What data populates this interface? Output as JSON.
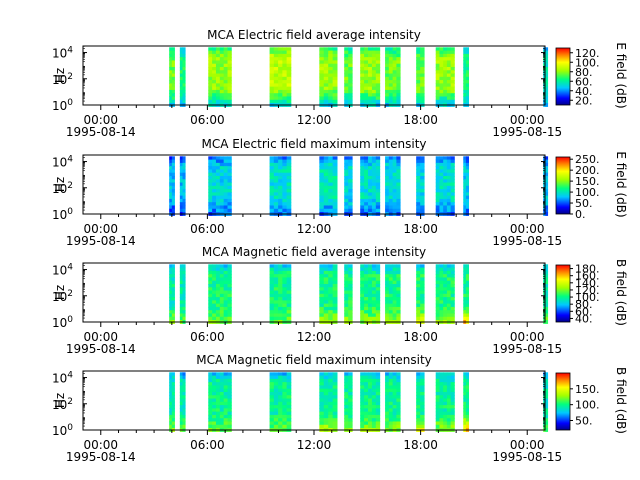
{
  "chart_data": [
    {
      "type": "heatmap",
      "title": "MCA  Electric field average intensity",
      "ylabel": "Hz",
      "ylim_log10": [
        0,
        4.5
      ],
      "y_ticks": [
        {
          "exp": "0",
          "value": 1
        },
        {
          "exp": "2",
          "value": 100
        },
        {
          "exp": "4",
          "value": 10000
        }
      ],
      "x_ticks": [
        {
          "hour": 0,
          "label": "00:00",
          "date": "1995-08-14"
        },
        {
          "hour": 6,
          "label": "06:00",
          "date": ""
        },
        {
          "hour": 12,
          "label": "12:00",
          "date": ""
        },
        {
          "hour": 18,
          "label": "18:00",
          "date": ""
        },
        {
          "hour": 24,
          "label": "00:00",
          "date": "1995-08-15"
        }
      ],
      "x_range_hours": [
        -1,
        25
      ],
      "colorbar": {
        "label": "E field (dB)",
        "min": 10,
        "max": 130,
        "ticks": [
          "20.",
          "40.",
          "60.",
          "80.",
          "100.",
          "120."
        ],
        "tick_values": [
          20,
          40,
          60,
          80,
          100,
          120
        ]
      },
      "base_level": 0.42,
      "segments": [
        {
          "start": 3.85,
          "end": 4.15,
          "level": 0.55,
          "low": 0.3
        },
        {
          "start": 4.45,
          "end": 4.75,
          "level": 0.45,
          "low": 0.3
        },
        {
          "start": 6.05,
          "end": 7.35,
          "level": 0.6,
          "low": 0.3
        },
        {
          "start": 9.5,
          "end": 10.7,
          "level": 0.65,
          "low": 0.3
        },
        {
          "start": 12.3,
          "end": 13.3,
          "level": 0.6,
          "low": 0.3
        },
        {
          "start": 13.7,
          "end": 14.15,
          "level": 0.55,
          "low": 0.3
        },
        {
          "start": 14.6,
          "end": 15.7,
          "level": 0.6,
          "low": 0.3
        },
        {
          "start": 16.0,
          "end": 16.85,
          "level": 0.55,
          "low": 0.3
        },
        {
          "start": 17.75,
          "end": 18.2,
          "level": 0.55,
          "low": 0.3
        },
        {
          "start": 18.85,
          "end": 19.9,
          "level": 0.6,
          "low": 0.3
        },
        {
          "start": 20.4,
          "end": 20.7,
          "level": 0.45,
          "low": 0.3
        },
        {
          "start": 24.9,
          "end": 25.15,
          "level": 0.4,
          "low": 0.3
        }
      ]
    },
    {
      "type": "heatmap",
      "title": "MCA  Electric field maximum intensity",
      "ylabel": "Hz",
      "ylim_log10": [
        0,
        4.5
      ],
      "y_ticks": [
        {
          "exp": "0",
          "value": 1
        },
        {
          "exp": "2",
          "value": 100
        },
        {
          "exp": "4",
          "value": 10000
        }
      ],
      "x_ticks": [
        {
          "hour": 0,
          "label": "00:00",
          "date": "1995-08-14"
        },
        {
          "hour": 6,
          "label": "06:00",
          "date": ""
        },
        {
          "hour": 12,
          "label": "12:00",
          "date": ""
        },
        {
          "hour": 18,
          "label": "18:00",
          "date": ""
        },
        {
          "hour": 24,
          "label": "00:00",
          "date": "1995-08-15"
        }
      ],
      "x_range_hours": [
        -1,
        25
      ],
      "colorbar": {
        "label": "E field (dB)",
        "min": 0,
        "max": 260,
        "ticks": [
          "0.",
          "50.",
          "100.",
          "150.",
          "200.",
          "250."
        ],
        "tick_values": [
          0,
          50,
          100,
          150,
          200,
          250
        ]
      },
      "base_level": 0.3,
      "segments": [
        {
          "start": 3.85,
          "end": 4.15,
          "level": 0.3,
          "low": 0.15
        },
        {
          "start": 4.45,
          "end": 4.75,
          "level": 0.3,
          "low": 0.15
        },
        {
          "start": 6.05,
          "end": 7.35,
          "level": 0.34,
          "low": 0.2
        },
        {
          "start": 9.5,
          "end": 10.7,
          "level": 0.36,
          "low": 0.2
        },
        {
          "start": 12.3,
          "end": 13.3,
          "level": 0.38,
          "low": 0.2
        },
        {
          "start": 13.7,
          "end": 14.15,
          "level": 0.35,
          "low": 0.2
        },
        {
          "start": 14.6,
          "end": 15.7,
          "level": 0.36,
          "low": 0.2
        },
        {
          "start": 16.0,
          "end": 16.85,
          "level": 0.35,
          "low": 0.2
        },
        {
          "start": 17.75,
          "end": 18.2,
          "level": 0.33,
          "low": 0.2
        },
        {
          "start": 18.85,
          "end": 19.9,
          "level": 0.36,
          "low": 0.2
        },
        {
          "start": 20.4,
          "end": 20.7,
          "level": 0.32,
          "low": 0.2
        },
        {
          "start": 24.9,
          "end": 25.15,
          "level": 0.32,
          "low": 0.2
        }
      ]
    },
    {
      "type": "heatmap",
      "title": "MCA  Magnetic field average intensity",
      "ylabel": "Hz",
      "ylim_log10": [
        0,
        4.5
      ],
      "y_ticks": [
        {
          "exp": "0",
          "value": 1
        },
        {
          "exp": "2",
          "value": 100
        },
        {
          "exp": "4",
          "value": 10000
        }
      ],
      "x_ticks": [
        {
          "hour": 0,
          "label": "00:00",
          "date": "1995-08-14"
        },
        {
          "hour": 6,
          "label": "06:00",
          "date": ""
        },
        {
          "hour": 12,
          "label": "12:00",
          "date": ""
        },
        {
          "hour": 18,
          "label": "18:00",
          "date": ""
        },
        {
          "hour": 24,
          "label": "00:00",
          "date": "1995-08-15"
        }
      ],
      "x_range_hours": [
        -1,
        25
      ],
      "colorbar": {
        "label": "B field (dB)",
        "min": 30,
        "max": 190,
        "ticks": [
          "40.",
          "60.",
          "80.",
          "100.",
          "120.",
          "140.",
          "160.",
          "180."
        ],
        "tick_values": [
          40,
          60,
          80,
          100,
          120,
          140,
          160,
          180
        ]
      },
      "base_level": 0.45,
      "segments": [
        {
          "start": 3.85,
          "end": 4.15,
          "level": 0.4,
          "low": 0.6
        },
        {
          "start": 4.45,
          "end": 4.75,
          "level": 0.4,
          "low": 0.55
        },
        {
          "start": 6.05,
          "end": 7.35,
          "level": 0.45,
          "low": 0.55
        },
        {
          "start": 9.5,
          "end": 10.7,
          "level": 0.45,
          "low": 0.55
        },
        {
          "start": 12.3,
          "end": 13.3,
          "level": 0.45,
          "low": 0.65
        },
        {
          "start": 13.7,
          "end": 14.15,
          "level": 0.45,
          "low": 0.6
        },
        {
          "start": 14.6,
          "end": 15.7,
          "level": 0.45,
          "low": 0.6
        },
        {
          "start": 16.0,
          "end": 16.85,
          "level": 0.45,
          "low": 0.6
        },
        {
          "start": 17.75,
          "end": 18.2,
          "level": 0.45,
          "low": 0.75
        },
        {
          "start": 18.85,
          "end": 19.9,
          "level": 0.45,
          "low": 0.6
        },
        {
          "start": 20.4,
          "end": 20.7,
          "level": 0.45,
          "low": 0.85
        },
        {
          "start": 24.9,
          "end": 25.15,
          "level": 0.4,
          "low": 0.55
        }
      ]
    },
    {
      "type": "heatmap",
      "title": "MCA  Magnetic field maximum intensity",
      "ylabel": "Hz",
      "ylim_log10": [
        0,
        4.5
      ],
      "y_ticks": [
        {
          "exp": "0",
          "value": 1
        },
        {
          "exp": "2",
          "value": 100
        },
        {
          "exp": "4",
          "value": 10000
        }
      ],
      "x_ticks": [
        {
          "hour": 0,
          "label": "00:00",
          "date": "1995-08-14"
        },
        {
          "hour": 6,
          "label": "06:00",
          "date": ""
        },
        {
          "hour": 12,
          "label": "12:00",
          "date": ""
        },
        {
          "hour": 18,
          "label": "18:00",
          "date": ""
        },
        {
          "hour": 24,
          "label": "00:00",
          "date": "1995-08-15"
        }
      ],
      "x_range_hours": [
        -1,
        25
      ],
      "colorbar": {
        "label": "B field (dB)",
        "min": 20,
        "max": 200,
        "ticks": [
          "50.",
          "100.",
          "150."
        ],
        "tick_values": [
          50,
          100,
          150
        ]
      },
      "base_level": 0.42,
      "segments": [
        {
          "start": 3.85,
          "end": 4.15,
          "level": 0.4,
          "low": 0.6
        },
        {
          "start": 4.45,
          "end": 4.75,
          "level": 0.4,
          "low": 0.55
        },
        {
          "start": 6.05,
          "end": 7.35,
          "level": 0.43,
          "low": 0.55
        },
        {
          "start": 9.5,
          "end": 10.7,
          "level": 0.43,
          "low": 0.55
        },
        {
          "start": 12.3,
          "end": 13.3,
          "level": 0.43,
          "low": 0.65
        },
        {
          "start": 13.7,
          "end": 14.15,
          "level": 0.43,
          "low": 0.6
        },
        {
          "start": 14.6,
          "end": 15.7,
          "level": 0.43,
          "low": 0.6
        },
        {
          "start": 16.0,
          "end": 16.85,
          "level": 0.43,
          "low": 0.6
        },
        {
          "start": 17.75,
          "end": 18.2,
          "level": 0.43,
          "low": 0.75
        },
        {
          "start": 18.85,
          "end": 19.9,
          "level": 0.43,
          "low": 0.6
        },
        {
          "start": 20.4,
          "end": 20.7,
          "level": 0.43,
          "low": 0.85
        },
        {
          "start": 24.9,
          "end": 25.15,
          "level": 0.4,
          "low": 0.55
        }
      ]
    }
  ]
}
